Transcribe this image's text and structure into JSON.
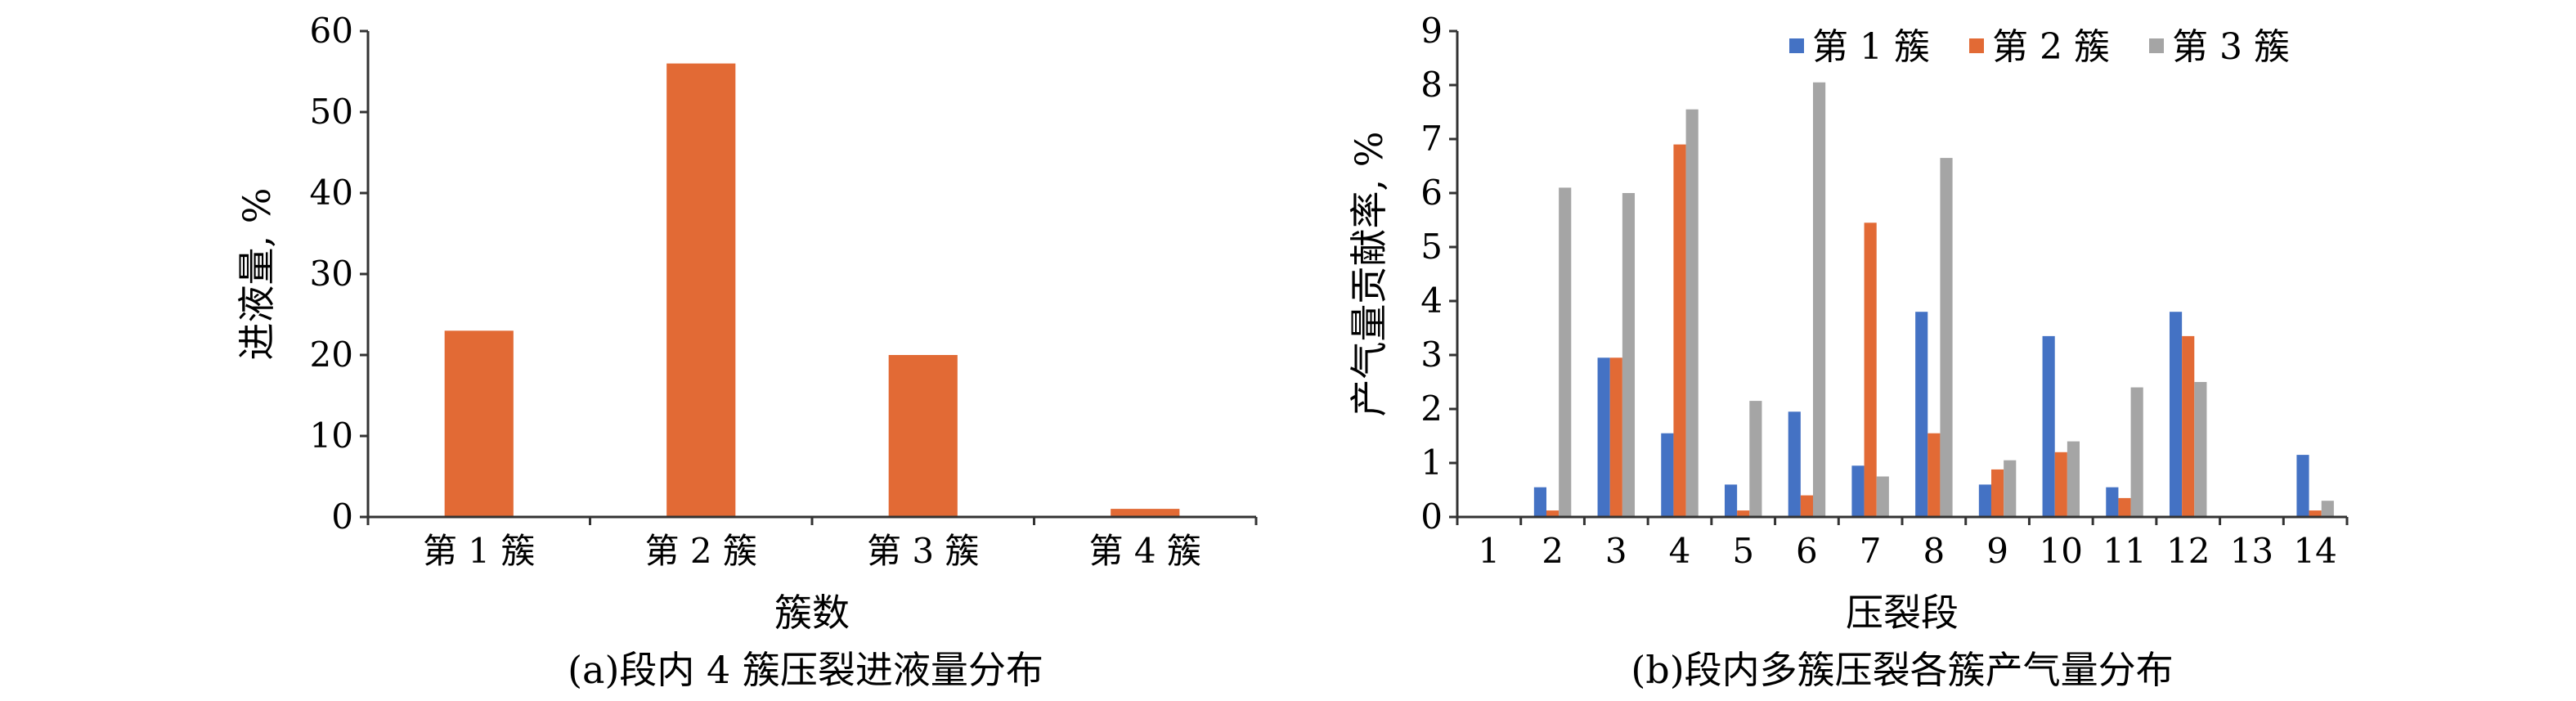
{
  "chart_data": [
    {
      "type": "bar",
      "caption": "(a)段内 4 簇压裂进液量分布",
      "xlabel": "簇数",
      "ylabel": "进液量, %",
      "categories": [
        "第 1 簇",
        "第 2 簇",
        "第 3 簇",
        "第 4 簇"
      ],
      "series": [
        {
          "values": [
            23,
            56,
            20,
            1
          ]
        }
      ],
      "ylim": [
        0,
        60
      ],
      "yticks": [
        "0",
        "10",
        "20",
        "30",
        "40",
        "50",
        "60"
      ],
      "grid": false,
      "colors": [
        "#E26A35"
      ]
    },
    {
      "type": "bar",
      "caption": "(b)段内多簇压裂各簇产气量分布",
      "xlabel": "压裂段",
      "ylabel": "产气量贡献率, %",
      "categories": [
        "1",
        "2",
        "3",
        "4",
        "5",
        "6",
        "7",
        "8",
        "9",
        "10",
        "11",
        "12",
        "13",
        "14"
      ],
      "series": [
        {
          "name": "第 1 簇",
          "values": [
            0,
            0.55,
            2.95,
            1.55,
            0.6,
            1.95,
            0.95,
            3.8,
            0.6,
            3.35,
            0.55,
            3.8,
            0,
            1.15
          ]
        },
        {
          "name": "第 2 簇",
          "values": [
            0,
            0.12,
            2.95,
            6.9,
            0.12,
            0.4,
            5.45,
            1.55,
            0.88,
            1.2,
            0.35,
            3.35,
            0,
            0.12
          ]
        },
        {
          "name": "第 3 簇",
          "values": [
            0,
            6.1,
            6.0,
            7.55,
            2.15,
            8.05,
            0.75,
            6.65,
            1.05,
            1.4,
            2.4,
            2.5,
            0,
            0.3
          ]
        }
      ],
      "ylim": [
        0,
        9
      ],
      "yticks": [
        "0",
        "1",
        "2",
        "3",
        "4",
        "5",
        "6",
        "7",
        "8",
        "9"
      ],
      "grid": false,
      "legend_position": "top-right",
      "colors": [
        "#4472C4",
        "#E26A35",
        "#A5A5A5"
      ]
    }
  ]
}
